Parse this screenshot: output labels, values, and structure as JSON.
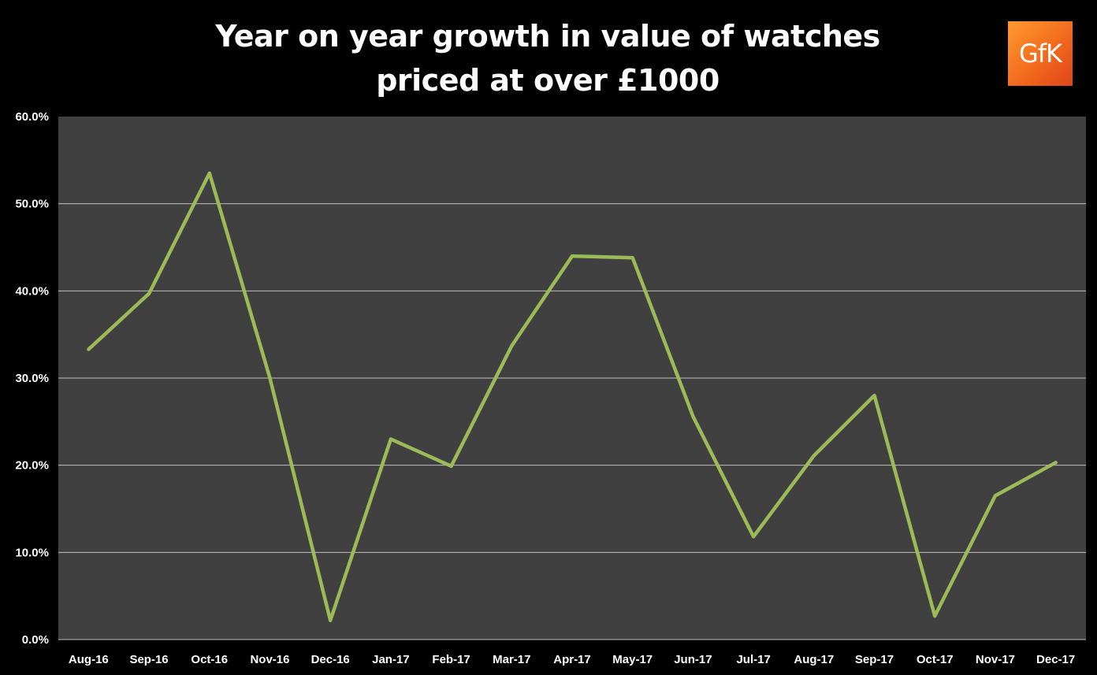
{
  "logo": {
    "text": "GfK",
    "color": "#f26a1d"
  },
  "chart_data": {
    "type": "line",
    "title": "Year on year growth in value of watches priced at over £1000",
    "title_lines": [
      "Year on year growth in value of watches",
      "priced at over £1000"
    ],
    "categories": [
      "Aug-16",
      "Sep-16",
      "Oct-16",
      "Nov-16",
      "Dec-16",
      "Jan-17",
      "Feb-17",
      "Mar-17",
      "Apr-17",
      "May-17",
      "Jun-17",
      "Jul-17",
      "Aug-17",
      "Sep-17",
      "Oct-17",
      "Nov-17",
      "Dec-17"
    ],
    "series": [
      {
        "values": [
          33.3,
          39.7,
          53.5,
          30.0,
          2.2,
          23.0,
          19.9,
          33.7,
          44.0,
          43.8,
          25.6,
          11.8,
          21.1,
          28.0,
          2.7,
          16.5,
          20.3
        ],
        "color": "#9bbb59"
      }
    ],
    "y_ticks": [
      "0.0%",
      "10.0%",
      "20.0%",
      "30.0%",
      "40.0%",
      "50.0%",
      "60.0%"
    ],
    "ylim": [
      0,
      60
    ],
    "xlabel": "",
    "ylabel": "",
    "grid": true,
    "legend": "none",
    "plot_background": "#404040",
    "page_background": "#000000",
    "gridline_color": "#bfbfbf"
  }
}
